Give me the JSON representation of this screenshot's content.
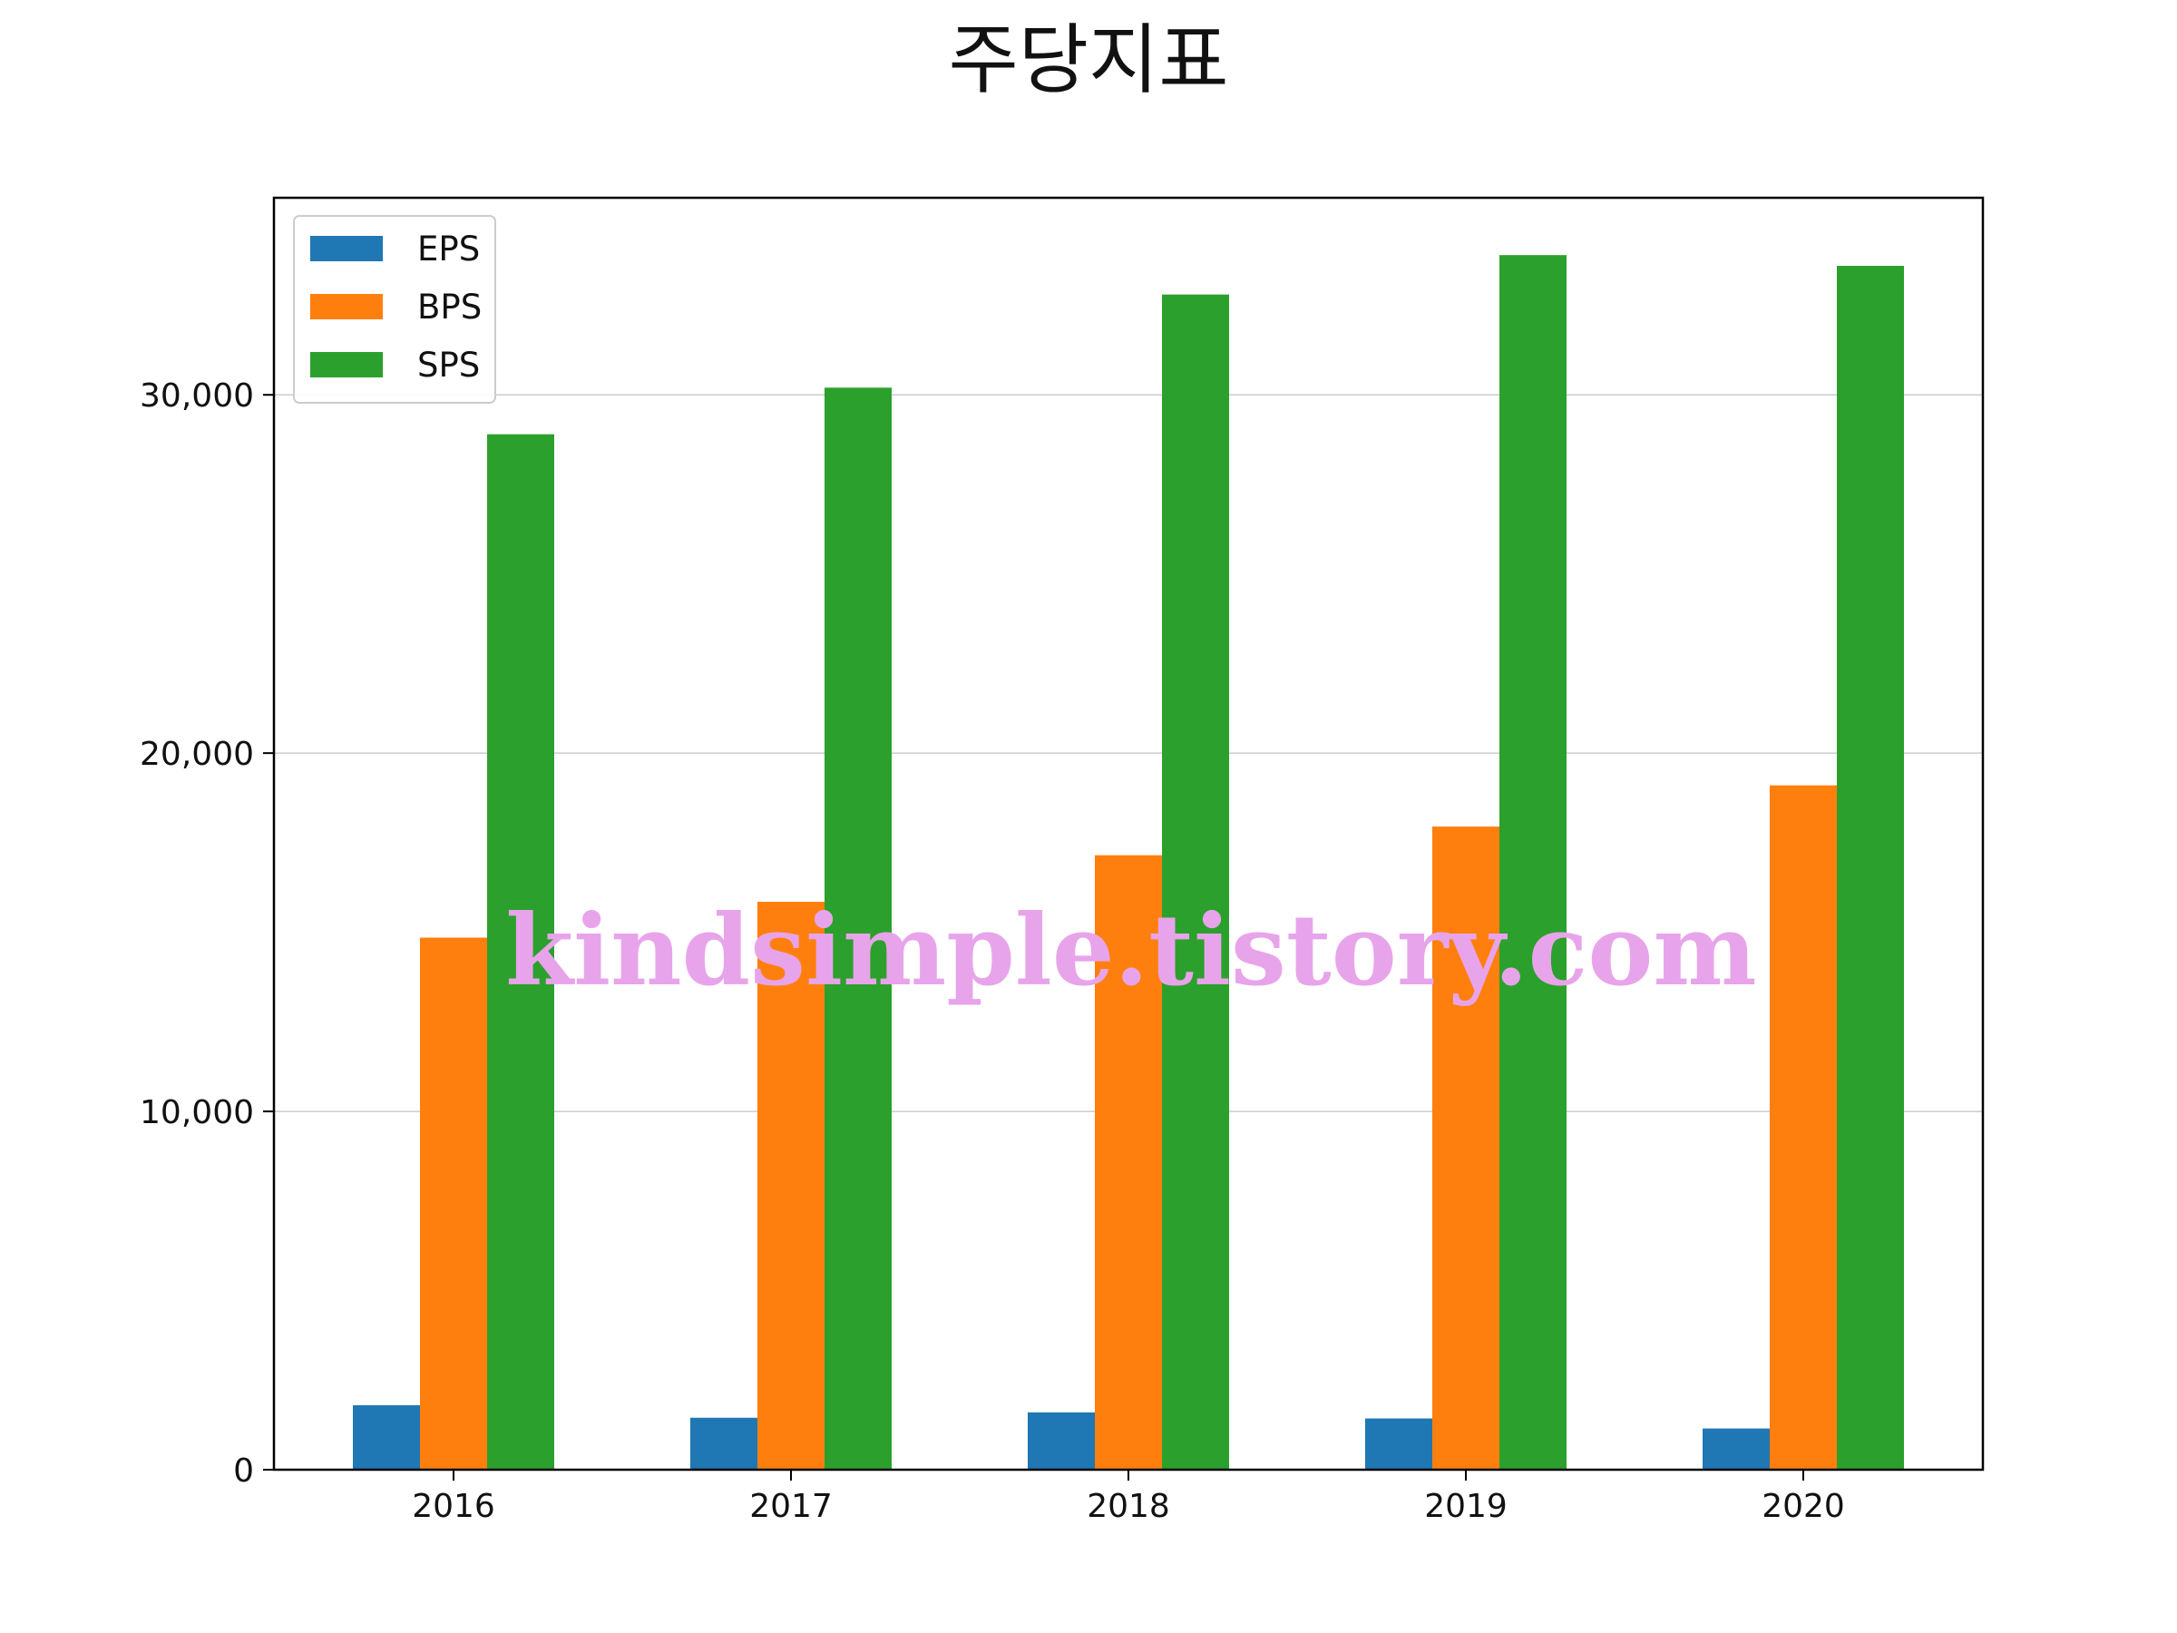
{
  "chart_data": {
    "type": "bar",
    "title": "주당지표",
    "xlabel": "",
    "ylabel": "",
    "categories": [
      "2016",
      "2017",
      "2018",
      "2019",
      "2020"
    ],
    "series": [
      {
        "name": "EPS",
        "color": "#1f77b4",
        "values": [
          1800,
          1450,
          1600,
          1430,
          1150
        ]
      },
      {
        "name": "BPS",
        "color": "#ff7f0e",
        "values": [
          14850,
          15850,
          17150,
          17950,
          19100
        ]
      },
      {
        "name": "SPS",
        "color": "#2ca02c",
        "values": [
          28900,
          30200,
          32800,
          33900,
          33600
        ]
      }
    ],
    "ylim": [
      0,
      35500
    ],
    "yticks": [
      0,
      10000,
      20000,
      30000
    ],
    "ytick_labels": [
      "0",
      "10,000",
      "20,000",
      "30,000"
    ],
    "grid": "horizontal",
    "legend_position": "top-left"
  },
  "watermark": "kindsimple.tistory.com"
}
